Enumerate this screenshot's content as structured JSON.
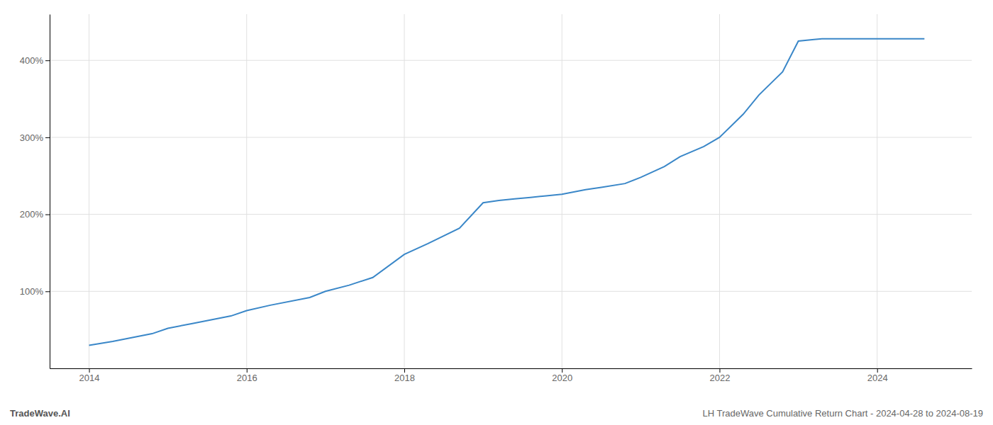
{
  "chart_data": {
    "type": "line",
    "title": "LH TradeWave Cumulative Return Chart - 2024-04-28 to 2024-08-19",
    "annotations": [
      "TradeWave.AI"
    ],
    "color": "#3a87c8",
    "grid": true,
    "x": [
      2014.0,
      2014.3,
      2014.8,
      2015.0,
      2015.3,
      2015.8,
      2016.0,
      2016.3,
      2016.8,
      2017.0,
      2017.3,
      2017.6,
      2018.0,
      2018.3,
      2018.7,
      2019.0,
      2019.2,
      2019.4,
      2019.6,
      2019.8,
      2020.0,
      2020.3,
      2020.5,
      2020.8,
      2021.0,
      2021.3,
      2021.5,
      2021.8,
      2022.0,
      2022.3,
      2022.5,
      2022.8,
      2023.0,
      2023.2,
      2023.3,
      2023.7,
      2024.0,
      2024.6
    ],
    "values": [
      30,
      35,
      45,
      52,
      58,
      68,
      75,
      82,
      92,
      100,
      108,
      118,
      148,
      162,
      182,
      215,
      218,
      220,
      222,
      224,
      226,
      232,
      235,
      240,
      248,
      262,
      275,
      288,
      300,
      330,
      355,
      385,
      425,
      427,
      428,
      428,
      428,
      428
    ],
    "xlim": [
      2013.5,
      2025.2
    ],
    "ylim": [
      0,
      460
    ],
    "xticks": [
      2014,
      2016,
      2018,
      2020,
      2022,
      2024
    ],
    "yticks": [
      {
        "value": 100,
        "label": "100%"
      },
      {
        "value": 200,
        "label": "200%"
      },
      {
        "value": 300,
        "label": "300%"
      },
      {
        "value": 400,
        "label": "400%"
      }
    ]
  }
}
